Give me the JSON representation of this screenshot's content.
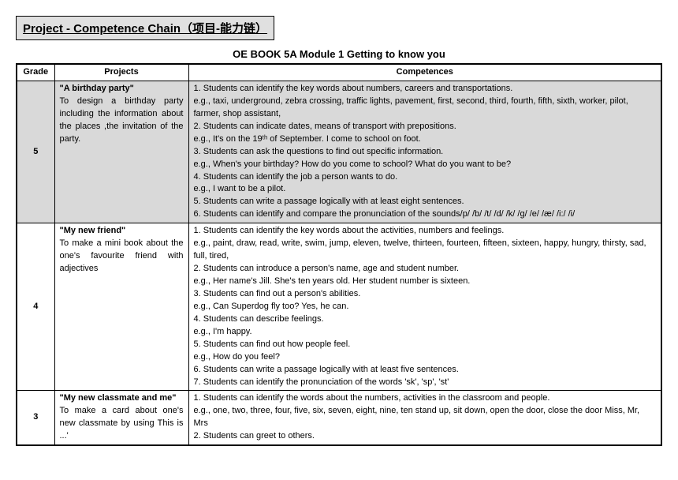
{
  "header": {
    "title": "Project - Competence Chain（项目-能力链）",
    "subtitle": "OE BOOK 5A Module 1 Getting to know you"
  },
  "columns": {
    "grade": "Grade",
    "projects": "Projects",
    "competences": "Competences"
  },
  "rows": [
    {
      "grade": "5",
      "shaded": true,
      "project_title": "\"A birthday party\"",
      "project_desc": "To design a birthday party including the information about the places ,the invitation  of the party.",
      "competences": [
        "1. Students can identify the key words about numbers, careers and transportations.",
        "e.g., taxi, underground, zebra crossing, traffic lights, pavement, first, second, third, fourth, fifth, sixth, worker, pilot, farmer, shop assistant,",
        "2. Students can indicate dates, means of transport with prepositions.",
        "e.g., It's on the 19ᵗʰ of September. I come to school on foot.",
        "3. Students can ask the questions to find out specific information.",
        "e.g., When's your birthday? How do you come to school? What do you want to be?",
        "4. Students can identify the job a person wants to do.",
        "e.g., I want to be a pilot.",
        "5. Students can write a passage logically with at least eight sentences.",
        "6. Students can identify and compare the pronunciation of the sounds/p/ /b/ /t/ /d/ /k/ /g/ /e/ /æ/ /i:/ /i/"
      ]
    },
    {
      "grade": "4",
      "shaded": false,
      "project_title": "\"My new friend\"",
      "project_desc": "To make a mini book about the one's favourite friend with adjectives",
      "competences": [
        "1. Students can identify the key words about the activities, numbers and feelings.",
        "e.g., paint, draw, read, write, swim, jump, eleven, twelve, thirteen, fourteen, fifteen, sixteen, happy, hungry, thirsty, sad, full, tired,",
        "2. Students can introduce a person's name, age and student number.",
        "e.g., Her name's Jill. She's ten years old. Her student number is sixteen.",
        "3. Students can find out a person's abilities.",
        "e.g., Can Superdog fly too? Yes, he can.",
        "4. Students can describe feelings.",
        "e.g., I'm happy.",
        "5. Students can find out how people feel.",
        "e.g., How do you feel?",
        "6. Students can write a passage logically with at least five sentences.",
        "7. Students can identify the pronunciation of the words 'sk', 'sp', 'st'"
      ]
    },
    {
      "grade": "3",
      "shaded": false,
      "project_title": "\"My new classmate and me\"",
      "project_desc": "To make a card about one's new classmate by using This is ...'",
      "competences": [
        "1. Students can identify the words about the numbers, activities in the classroom and people.",
        "e.g., one, two, three, four, five, six, seven, eight, nine, ten stand up, sit down, open the door, close the door Miss, Mr, Mrs",
        "2. Students can greet to others."
      ]
    }
  ]
}
